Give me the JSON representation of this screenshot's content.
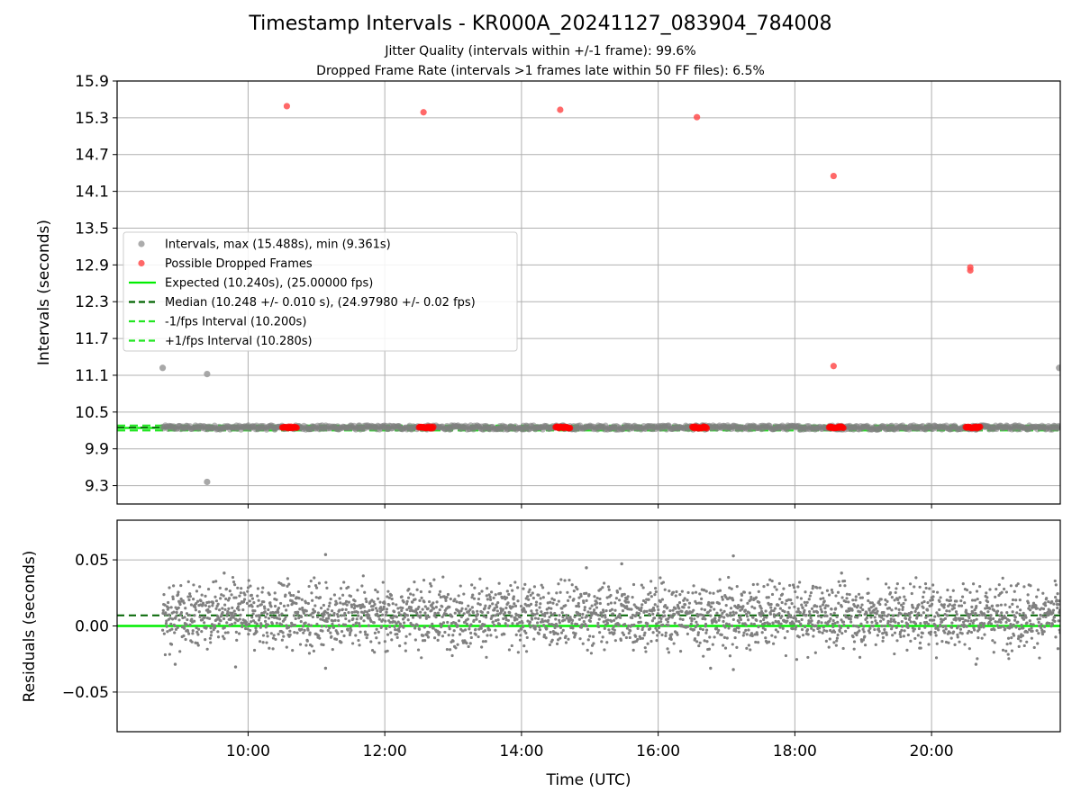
{
  "title": "Timestamp Intervals - KR000A_20241127_083904_784008",
  "subtitle_1": "Jitter Quality (intervals within +/-1 frame): 99.6%",
  "subtitle_2": "Dropped Frame Rate (intervals >1 frames late within 50 FF files): 6.5%",
  "colors": {
    "gray_points": "#808080",
    "red_points": "#ff0000",
    "expected_line": "#00ee00",
    "median_line": "#006400",
    "fps_band": "#22e622",
    "grid": "#b0b0b0"
  },
  "chart_data": [
    {
      "type": "scatter",
      "panel": "top",
      "ylabel": "Intervals (seconds)",
      "xlim": [
        "08:05",
        "21:53"
      ],
      "ylim": [
        9.0,
        15.9
      ],
      "yticks": [
        "9.3",
        "9.9",
        "10.5",
        "11.1",
        "11.7",
        "12.3",
        "12.9",
        "13.5",
        "14.1",
        "14.7",
        "15.3",
        "15.9"
      ],
      "grid": true,
      "legend_position": "center-left",
      "legend": [
        {
          "label": "Intervals, max (15.488s), min (9.361s)",
          "kind": "marker",
          "color": "#9e9e9e"
        },
        {
          "label": "Possible Dropped Frames",
          "kind": "marker",
          "color": "#ff4d4d"
        },
        {
          "label": "Expected (10.240s), (25.00000 fps)",
          "kind": "solid",
          "color": "#00ee00"
        },
        {
          "label": "Median (10.248 +/- 0.010 s), (24.97980 +/- 0.02 fps)",
          "kind": "dashed",
          "color": "#006400"
        },
        {
          "label": "-1/fps Interval (10.200s)",
          "kind": "dashed",
          "color": "#22e622"
        },
        {
          "label": "+1/fps Interval (10.280s)",
          "kind": "dashed",
          "color": "#22e622"
        }
      ],
      "lines": {
        "expected": 10.24,
        "median": 10.248,
        "minus_fps": 10.2,
        "plus_fps": 10.28
      },
      "series": [
        {
          "name": "Intervals, max (15.488s), min (9.361s)",
          "points": [
            {
              "x": "08:45",
              "y": 11.22
            },
            {
              "x": "09:24",
              "y": 11.12
            },
            {
              "x": "09:24",
              "y": 9.36
            },
            {
              "x": "21:52",
              "y": 11.22
            }
          ],
          "band": {
            "x_start": "08:45",
            "x_end": "21:53",
            "y_center": 10.248,
            "spread": 0.035
          }
        },
        {
          "name": "Possible Dropped Frames",
          "points": [
            {
              "x": "10:34",
              "y": 15.49
            },
            {
              "x": "12:34",
              "y": 15.39
            },
            {
              "x": "14:34",
              "y": 15.43
            },
            {
              "x": "16:34",
              "y": 15.31
            },
            {
              "x": "18:34",
              "y": 14.35
            },
            {
              "x": "18:34",
              "y": 11.25
            },
            {
              "x": "20:34",
              "y": 12.86
            },
            {
              "x": "20:34",
              "y": 12.81
            }
          ],
          "clusters": [
            {
              "x_start": "10:30",
              "x_end": "10:43",
              "y": 10.248
            },
            {
              "x_start": "12:30",
              "x_end": "12:43",
              "y": 10.248
            },
            {
              "x_start": "14:30",
              "x_end": "14:43",
              "y": 10.248
            },
            {
              "x_start": "16:30",
              "x_end": "16:43",
              "y": 10.248
            },
            {
              "x_start": "18:30",
              "x_end": "18:43",
              "y": 10.248
            },
            {
              "x_start": "20:30",
              "x_end": "20:43",
              "y": 10.248
            }
          ]
        }
      ]
    },
    {
      "type": "scatter",
      "panel": "bottom",
      "xlabel": "Time (UTC)",
      "ylabel": "Residuals (seconds)",
      "xlim": [
        "08:05",
        "21:53"
      ],
      "xticks": [
        "10:00",
        "12:00",
        "14:00",
        "16:00",
        "18:00",
        "20:00"
      ],
      "ylim": [
        -0.08,
        0.08
      ],
      "yticks": [
        "0.05",
        "0.00",
        "−0.05"
      ],
      "grid": true,
      "lines": {
        "expected": 0.0,
        "median": 0.008
      },
      "series": [
        {
          "name": "Residuals",
          "x_start": "08:45",
          "x_end": "21:53",
          "center": 0.008,
          "spread": 0.012,
          "outliers": [
            {
              "x": "11:08",
              "y": 0.054
            },
            {
              "x": "17:06",
              "y": 0.053
            },
            {
              "x": "15:28",
              "y": 0.047
            },
            {
              "x": "14:57",
              "y": 0.044
            },
            {
              "x": "18:41",
              "y": 0.04
            },
            {
              "x": "09:39",
              "y": 0.04
            },
            {
              "x": "11:08",
              "y": -0.032
            },
            {
              "x": "16:46",
              "y": -0.032
            },
            {
              "x": "17:06",
              "y": -0.033
            },
            {
              "x": "20:39",
              "y": -0.029
            },
            {
              "x": "09:49",
              "y": -0.031
            },
            {
              "x": "08:56",
              "y": -0.029
            }
          ]
        }
      ]
    }
  ]
}
